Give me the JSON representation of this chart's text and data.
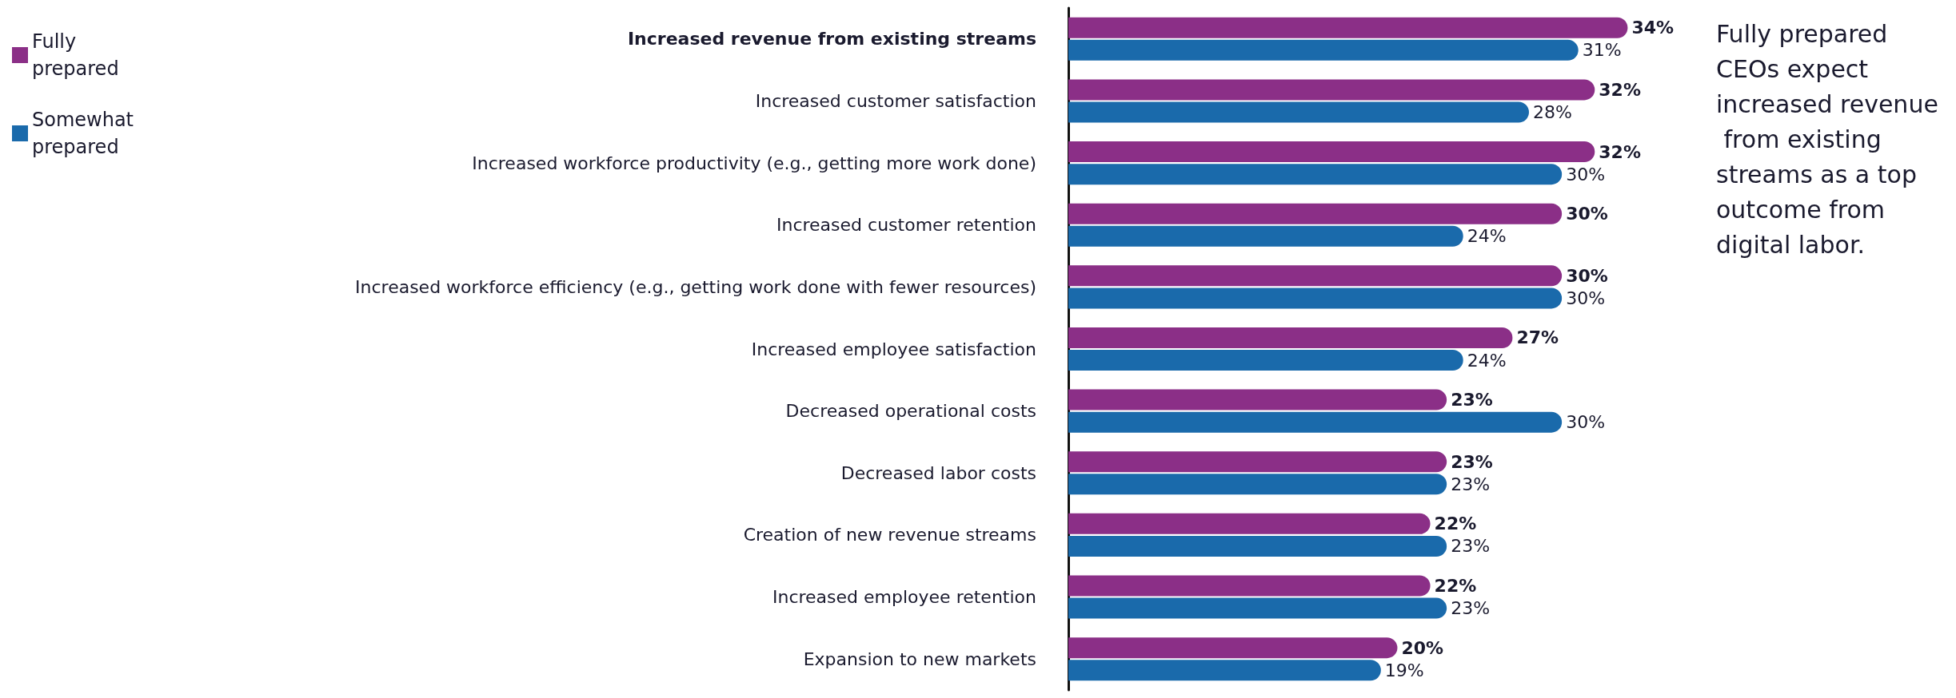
{
  "chart_data": {
    "type": "bar",
    "orientation": "horizontal",
    "categories": [
      "Increased revenue from existing streams",
      "Increased customer satisfaction",
      "Increased workforce productivity (e.g., getting more work done)",
      "Increased customer retention",
      "Increased workforce efficiency (e.g., getting work done with fewer resources)",
      "Increased employee satisfaction",
      "Decreased operational costs",
      "Decreased labor costs",
      "Creation of new revenue streams",
      "Increased employee retention",
      "Expansion to new markets"
    ],
    "series": [
      {
        "name": "Fully prepared",
        "color": "#8b2f87",
        "values": [
          34,
          32,
          32,
          30,
          30,
          27,
          23,
          23,
          22,
          22,
          20
        ],
        "value_labels": [
          "34%",
          "32%",
          "32%",
          "30%",
          "30%",
          "27%",
          "23%",
          "23%",
          "22%",
          "22%",
          "20%"
        ]
      },
      {
        "name": "Somewhat prepared",
        "color": "#1a6aab",
        "values": [
          31,
          28,
          30,
          24,
          30,
          24,
          30,
          23,
          23,
          23,
          19
        ],
        "value_labels": [
          "31%",
          "28%",
          "30%",
          "24%",
          "30%",
          "24%",
          "30%",
          "23%",
          "23%",
          "23%",
          "19%"
        ]
      }
    ],
    "tick_labels": "y",
    "grid": false,
    "legend": "top left",
    "annotations": [
      "Fully prepared CEOs expect increased revenue from existing streams as a top outcome from digital labor."
    ]
  }
}
